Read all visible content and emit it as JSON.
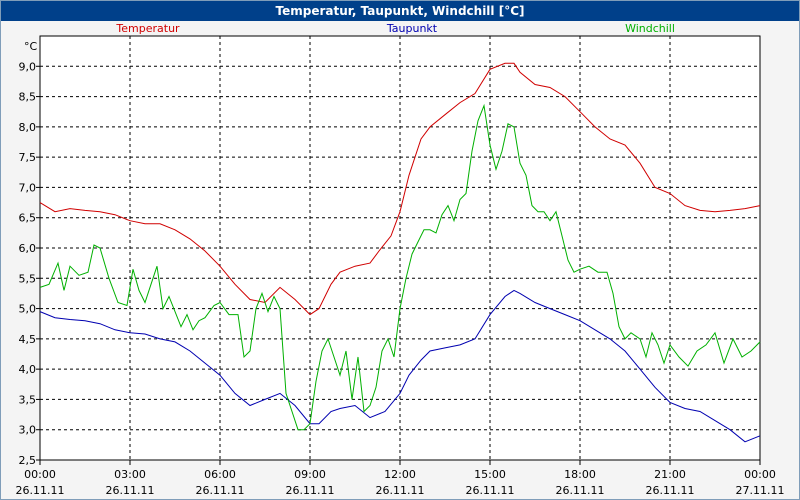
{
  "chart_data": {
    "type": "line",
    "title": "Temperatur, Taupunkt, Windchill [°C]",
    "yunit": "°C",
    "ylim": [
      2.5,
      9.5
    ],
    "yticks": [
      2.5,
      3.0,
      3.5,
      4.0,
      4.5,
      5.0,
      5.5,
      6.0,
      6.5,
      7.0,
      7.5,
      8.0,
      8.5,
      9.0
    ],
    "ytick_labels": [
      "2,5",
      "3,0",
      "3,5",
      "4,0",
      "4,5",
      "5,0",
      "5,5",
      "6,0",
      "6,5",
      "7,0",
      "7,5",
      "8,0",
      "8,5",
      "9,0"
    ],
    "xlim": [
      0,
      24
    ],
    "xticks": [
      0,
      3,
      6,
      9,
      12,
      15,
      18,
      21,
      24
    ],
    "xtick_times": [
      "00:00",
      "03:00",
      "06:00",
      "09:00",
      "12:00",
      "15:00",
      "18:00",
      "21:00",
      "00:00"
    ],
    "xtick_dates": [
      "26.11.11",
      "26.11.11",
      "26.11.11",
      "26.11.11",
      "26.11.11",
      "26.11.11",
      "26.11.11",
      "26.11.11",
      "27.11.11"
    ],
    "grid": true,
    "legend_placement": "top",
    "series": [
      {
        "name": "Temperatur",
        "color": "#d00000",
        "points": [
          [
            0,
            6.75
          ],
          [
            0.5,
            6.6
          ],
          [
            1,
            6.65
          ],
          [
            1.5,
            6.62
          ],
          [
            2,
            6.6
          ],
          [
            2.5,
            6.55
          ],
          [
            3,
            6.45
          ],
          [
            3.5,
            6.4
          ],
          [
            4,
            6.4
          ],
          [
            4.5,
            6.3
          ],
          [
            5,
            6.15
          ],
          [
            5.5,
            5.95
          ],
          [
            6,
            5.7
          ],
          [
            6.5,
            5.4
          ],
          [
            7,
            5.15
          ],
          [
            7.5,
            5.1
          ],
          [
            8,
            5.35
          ],
          [
            8.5,
            5.15
          ],
          [
            9,
            4.9
          ],
          [
            9.3,
            5.0
          ],
          [
            9.7,
            5.4
          ],
          [
            10,
            5.6
          ],
          [
            10.5,
            5.7
          ],
          [
            11,
            5.75
          ],
          [
            11.3,
            5.95
          ],
          [
            11.7,
            6.2
          ],
          [
            12,
            6.6
          ],
          [
            12.3,
            7.2
          ],
          [
            12.7,
            7.8
          ],
          [
            13,
            8.0
          ],
          [
            13.5,
            8.2
          ],
          [
            14,
            8.4
          ],
          [
            14.5,
            8.55
          ],
          [
            15,
            8.95
          ],
          [
            15.5,
            9.05
          ],
          [
            15.8,
            9.05
          ],
          [
            16,
            8.9
          ],
          [
            16.5,
            8.7
          ],
          [
            17,
            8.65
          ],
          [
            17.5,
            8.5
          ],
          [
            18,
            8.25
          ],
          [
            18.5,
            8.0
          ],
          [
            19,
            7.8
          ],
          [
            19.5,
            7.7
          ],
          [
            20,
            7.4
          ],
          [
            20.5,
            7.0
          ],
          [
            21,
            6.9
          ],
          [
            21.5,
            6.7
          ],
          [
            22,
            6.62
          ],
          [
            22.5,
            6.6
          ],
          [
            23,
            6.62
          ],
          [
            23.5,
            6.65
          ],
          [
            24,
            6.7
          ]
        ]
      },
      {
        "name": "Taupunkt",
        "color": "#0000b0",
        "points": [
          [
            0,
            4.95
          ],
          [
            0.5,
            4.85
          ],
          [
            1,
            4.82
          ],
          [
            1.5,
            4.8
          ],
          [
            2,
            4.75
          ],
          [
            2.5,
            4.65
          ],
          [
            3,
            4.6
          ],
          [
            3.5,
            4.58
          ],
          [
            4,
            4.5
          ],
          [
            4.5,
            4.45
          ],
          [
            5,
            4.3
          ],
          [
            5.5,
            4.1
          ],
          [
            6,
            3.9
          ],
          [
            6.5,
            3.6
          ],
          [
            7,
            3.4
          ],
          [
            7.5,
            3.5
          ],
          [
            8,
            3.6
          ],
          [
            8.5,
            3.4
          ],
          [
            9,
            3.1
          ],
          [
            9.3,
            3.1
          ],
          [
            9.7,
            3.3
          ],
          [
            10,
            3.35
          ],
          [
            10.5,
            3.4
          ],
          [
            11,
            3.2
          ],
          [
            11.5,
            3.3
          ],
          [
            12,
            3.6
          ],
          [
            12.3,
            3.9
          ],
          [
            12.7,
            4.15
          ],
          [
            13,
            4.3
          ],
          [
            13.5,
            4.35
          ],
          [
            14,
            4.4
          ],
          [
            14.5,
            4.5
          ],
          [
            15,
            4.9
          ],
          [
            15.5,
            5.2
          ],
          [
            15.8,
            5.3
          ],
          [
            16,
            5.25
          ],
          [
            16.5,
            5.1
          ],
          [
            17,
            5.0
          ],
          [
            17.5,
            4.9
          ],
          [
            18,
            4.8
          ],
          [
            18.5,
            4.65
          ],
          [
            19,
            4.5
          ],
          [
            19.5,
            4.3
          ],
          [
            20,
            4.0
          ],
          [
            20.5,
            3.7
          ],
          [
            21,
            3.45
          ],
          [
            21.5,
            3.35
          ],
          [
            22,
            3.3
          ],
          [
            22.5,
            3.15
          ],
          [
            23,
            3.0
          ],
          [
            23.5,
            2.8
          ],
          [
            24,
            2.9
          ]
        ]
      },
      {
        "name": "Windchill",
        "color": "#00b000",
        "points": [
          [
            0,
            5.35
          ],
          [
            0.3,
            5.4
          ],
          [
            0.6,
            5.75
          ],
          [
            0.8,
            5.3
          ],
          [
            1,
            5.7
          ],
          [
            1.3,
            5.55
          ],
          [
            1.6,
            5.6
          ],
          [
            1.8,
            6.05
          ],
          [
            2,
            6.0
          ],
          [
            2.3,
            5.5
          ],
          [
            2.6,
            5.1
          ],
          [
            2.9,
            5.05
          ],
          [
            3.1,
            5.65
          ],
          [
            3.3,
            5.3
          ],
          [
            3.5,
            5.1
          ],
          [
            3.7,
            5.4
          ],
          [
            3.9,
            5.7
          ],
          [
            4.1,
            5.0
          ],
          [
            4.3,
            5.2
          ],
          [
            4.5,
            4.95
          ],
          [
            4.7,
            4.7
          ],
          [
            4.9,
            4.9
          ],
          [
            5.1,
            4.65
          ],
          [
            5.3,
            4.8
          ],
          [
            5.5,
            4.85
          ],
          [
            5.8,
            5.05
          ],
          [
            6.0,
            5.1
          ],
          [
            6.3,
            4.9
          ],
          [
            6.6,
            4.9
          ],
          [
            6.8,
            4.2
          ],
          [
            7.0,
            4.3
          ],
          [
            7.2,
            5.0
          ],
          [
            7.4,
            5.25
          ],
          [
            7.6,
            4.95
          ],
          [
            7.8,
            5.2
          ],
          [
            8.0,
            5.0
          ],
          [
            8.2,
            3.6
          ],
          [
            8.4,
            3.3
          ],
          [
            8.6,
            3.0
          ],
          [
            8.8,
            3.0
          ],
          [
            9.0,
            3.1
          ],
          [
            9.2,
            3.8
          ],
          [
            9.4,
            4.3
          ],
          [
            9.6,
            4.5
          ],
          [
            9.8,
            4.2
          ],
          [
            10.0,
            3.9
          ],
          [
            10.2,
            4.3
          ],
          [
            10.4,
            3.5
          ],
          [
            10.6,
            4.2
          ],
          [
            10.8,
            3.3
          ],
          [
            11.0,
            3.4
          ],
          [
            11.2,
            3.7
          ],
          [
            11.4,
            4.3
          ],
          [
            11.6,
            4.5
          ],
          [
            11.8,
            4.2
          ],
          [
            12.0,
            5.0
          ],
          [
            12.2,
            5.5
          ],
          [
            12.4,
            5.9
          ],
          [
            12.6,
            6.1
          ],
          [
            12.8,
            6.3
          ],
          [
            13.0,
            6.3
          ],
          [
            13.2,
            6.25
          ],
          [
            13.4,
            6.55
          ],
          [
            13.6,
            6.7
          ],
          [
            13.8,
            6.45
          ],
          [
            14.0,
            6.8
          ],
          [
            14.2,
            6.9
          ],
          [
            14.4,
            7.6
          ],
          [
            14.6,
            8.1
          ],
          [
            14.8,
            8.35
          ],
          [
            15.0,
            7.7
          ],
          [
            15.2,
            7.3
          ],
          [
            15.4,
            7.6
          ],
          [
            15.6,
            8.05
          ],
          [
            15.8,
            8.0
          ],
          [
            16.0,
            7.4
          ],
          [
            16.2,
            7.2
          ],
          [
            16.4,
            6.7
          ],
          [
            16.6,
            6.6
          ],
          [
            16.8,
            6.6
          ],
          [
            17.0,
            6.45
          ],
          [
            17.2,
            6.6
          ],
          [
            17.4,
            6.2
          ],
          [
            17.6,
            5.8
          ],
          [
            17.8,
            5.6
          ],
          [
            18.0,
            5.65
          ],
          [
            18.3,
            5.7
          ],
          [
            18.6,
            5.6
          ],
          [
            18.9,
            5.6
          ],
          [
            19.1,
            5.25
          ],
          [
            19.3,
            4.7
          ],
          [
            19.5,
            4.5
          ],
          [
            19.7,
            4.6
          ],
          [
            20.0,
            4.5
          ],
          [
            20.2,
            4.2
          ],
          [
            20.4,
            4.6
          ],
          [
            20.6,
            4.4
          ],
          [
            20.8,
            4.1
          ],
          [
            21.0,
            4.4
          ],
          [
            21.3,
            4.2
          ],
          [
            21.6,
            4.05
          ],
          [
            21.9,
            4.3
          ],
          [
            22.2,
            4.4
          ],
          [
            22.5,
            4.6
          ],
          [
            22.8,
            4.1
          ],
          [
            23.1,
            4.5
          ],
          [
            23.4,
            4.2
          ],
          [
            23.7,
            4.3
          ],
          [
            24,
            4.45
          ]
        ]
      }
    ]
  }
}
